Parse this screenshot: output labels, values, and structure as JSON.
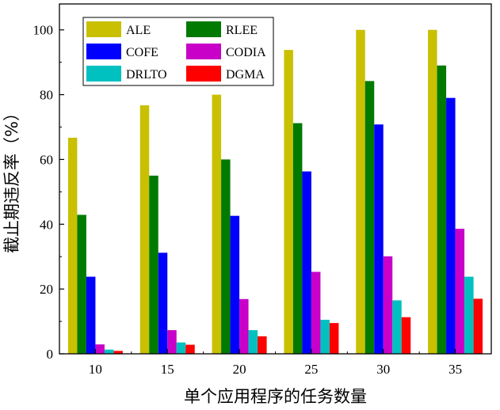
{
  "chart_data": {
    "type": "bar",
    "categories": [
      "10",
      "15",
      "20",
      "25",
      "30",
      "35"
    ],
    "xlabel": "单个应用程序的任务数量",
    "ylabel": "截止期违反率（%）",
    "ylim": [
      0,
      108
    ],
    "yticks": [
      0,
      20,
      40,
      60,
      80,
      100
    ],
    "grid": false,
    "legend": {
      "position": "top-left",
      "columns": 2
    },
    "series": [
      {
        "name": "ALE",
        "color": "#c8c000",
        "values": [
          66.7,
          76.7,
          80.0,
          93.8,
          100.0,
          100.0
        ]
      },
      {
        "name": "RLEE",
        "color": "#007a00",
        "values": [
          42.9,
          55.0,
          60.0,
          71.2,
          84.2,
          89.0
        ]
      },
      {
        "name": "COFE",
        "color": "#0000ff",
        "values": [
          23.8,
          31.2,
          42.6,
          56.3,
          70.8,
          79.0
        ]
      },
      {
        "name": "CODIA",
        "color": "#c800c8",
        "values": [
          2.9,
          7.3,
          16.9,
          25.3,
          30.1,
          38.6
        ]
      },
      {
        "name": "DRLTO",
        "color": "#00c0c0",
        "values": [
          1.3,
          3.5,
          7.3,
          10.5,
          16.5,
          23.8
        ]
      },
      {
        "name": "DGMA",
        "color": "#ff0000",
        "values": [
          0.9,
          2.8,
          5.4,
          9.5,
          11.3,
          17.0
        ]
      }
    ]
  }
}
